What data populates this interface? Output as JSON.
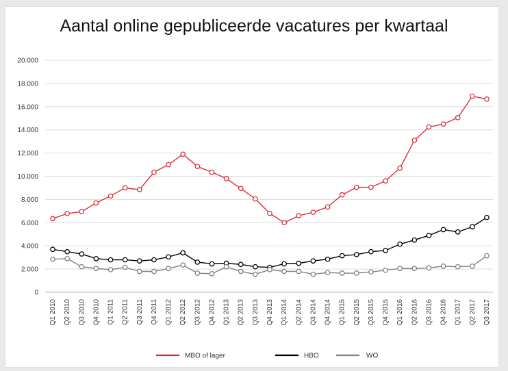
{
  "chart_data": {
    "type": "line",
    "title": "Aantal online gepubliceerde vacatures per kwartaal",
    "xlabel": "",
    "ylabel": "",
    "ylim": [
      0,
      20000
    ],
    "yticks": [
      {
        "value": 0,
        "label": "0"
      },
      {
        "value": 2000,
        "label": "2.000"
      },
      {
        "value": 4000,
        "label": "4.000"
      },
      {
        "value": 6000,
        "label": "6.000"
      },
      {
        "value": 8000,
        "label": "8.000"
      },
      {
        "value": 10000,
        "label": "10.000"
      },
      {
        "value": 12000,
        "label": "12.000"
      },
      {
        "value": 14000,
        "label": "14.000"
      },
      {
        "value": 16000,
        "label": "16.000"
      },
      {
        "value": 18000,
        "label": "18.000"
      },
      {
        "value": 20000,
        "label": "20.000"
      }
    ],
    "grid": true,
    "legend": "bottom",
    "categories": [
      "Q1 2010",
      "Q2 2010",
      "Q3 2010",
      "Q4 2010",
      "Q1 2011",
      "Q2 2011",
      "Q3 2011",
      "Q4 2011",
      "Q1 2012",
      "Q2 2012",
      "Q3 2012",
      "Q4 2012",
      "Q1 2013",
      "Q2 2013",
      "Q3 2013",
      "Q4 2013",
      "Q1 2014",
      "Q2 2014",
      "Q3 2014",
      "Q4 2014",
      "Q1 2015",
      "Q2 2015",
      "Q3 2015",
      "Q4 2015",
      "Q1 2016",
      "Q2 2016",
      "Q3 2016",
      "Q4 2016",
      "Q1 2017",
      "Q2 2017",
      "Q3 2017"
    ],
    "series": [
      {
        "name": "MBO of lager",
        "color": "#d6303a",
        "marker_fill": "#ffffff",
        "values": [
          6350,
          6780,
          6950,
          7700,
          8300,
          9000,
          8850,
          10350,
          11000,
          11900,
          10850,
          10350,
          9800,
          8950,
          8050,
          6800,
          6000,
          6600,
          6900,
          7350,
          8400,
          9050,
          9050,
          9600,
          10700,
          13100,
          14250,
          14500,
          15050,
          16900,
          16650
        ]
      },
      {
        "name": "HBO",
        "color": "#000000",
        "marker_fill": "#ffffff",
        "values": [
          3700,
          3500,
          3300,
          2900,
          2800,
          2800,
          2700,
          2800,
          3050,
          3400,
          2600,
          2450,
          2500,
          2400,
          2200,
          2150,
          2450,
          2500,
          2700,
          2850,
          3150,
          3250,
          3500,
          3600,
          4150,
          4500,
          4900,
          5400,
          5200,
          5650,
          6450
        ]
      },
      {
        "name": "WO",
        "color": "#808080",
        "marker_fill": "#ffffff",
        "values": [
          2850,
          2900,
          2200,
          2050,
          1950,
          2150,
          1800,
          1800,
          2050,
          2350,
          1650,
          1600,
          2200,
          1800,
          1550,
          1950,
          1800,
          1800,
          1550,
          1700,
          1650,
          1650,
          1750,
          1900,
          2050,
          2050,
          2100,
          2250,
          2200,
          2250,
          3150
        ]
      }
    ]
  }
}
